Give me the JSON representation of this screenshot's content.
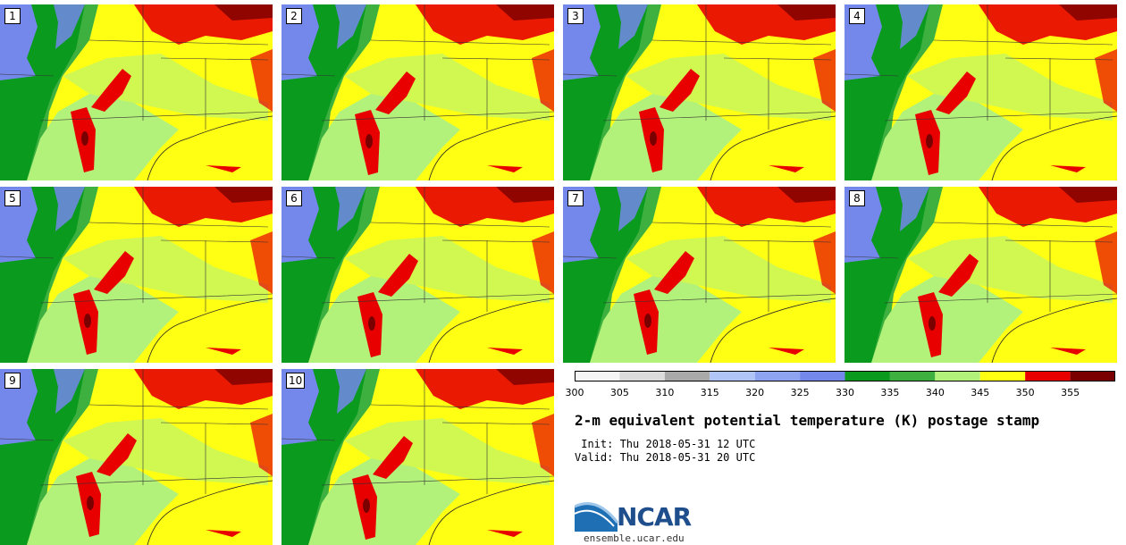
{
  "title": "2-m equivalent potential temperature (K) postage stamp",
  "init": " Init: Thu 2018-05-31 12 UTC",
  "valid": "Valid: Thu 2018-05-31 20 UTC",
  "logo": {
    "name": "NCAR",
    "url": "ensemble.ucar.edu"
  },
  "members": [
    "1",
    "2",
    "3",
    "4",
    "5",
    "6",
    "7",
    "8",
    "9",
    "10"
  ],
  "colorbar": {
    "ticks": [
      "300",
      "305",
      "310",
      "315",
      "320",
      "325",
      "330",
      "335",
      "340",
      "345",
      "350",
      "355"
    ],
    "colors": [
      "#f5f5f5",
      "#dcdcdc",
      "#a9a9a9",
      "#b0c4f8",
      "#8fa4f0",
      "#7388ea",
      "#0a9a1e",
      "#3db040",
      "#b3f27a",
      "#ffff14",
      "#e80000",
      "#7a0000"
    ]
  },
  "map_colors": {
    "cold": "#7388ea",
    "dark_green": "#0a9a1e",
    "mid_green": "#3db040",
    "light_green": "#b3f27a",
    "yellow": "#ffff14",
    "red": "#e80000",
    "dark_red": "#7a0000"
  }
}
